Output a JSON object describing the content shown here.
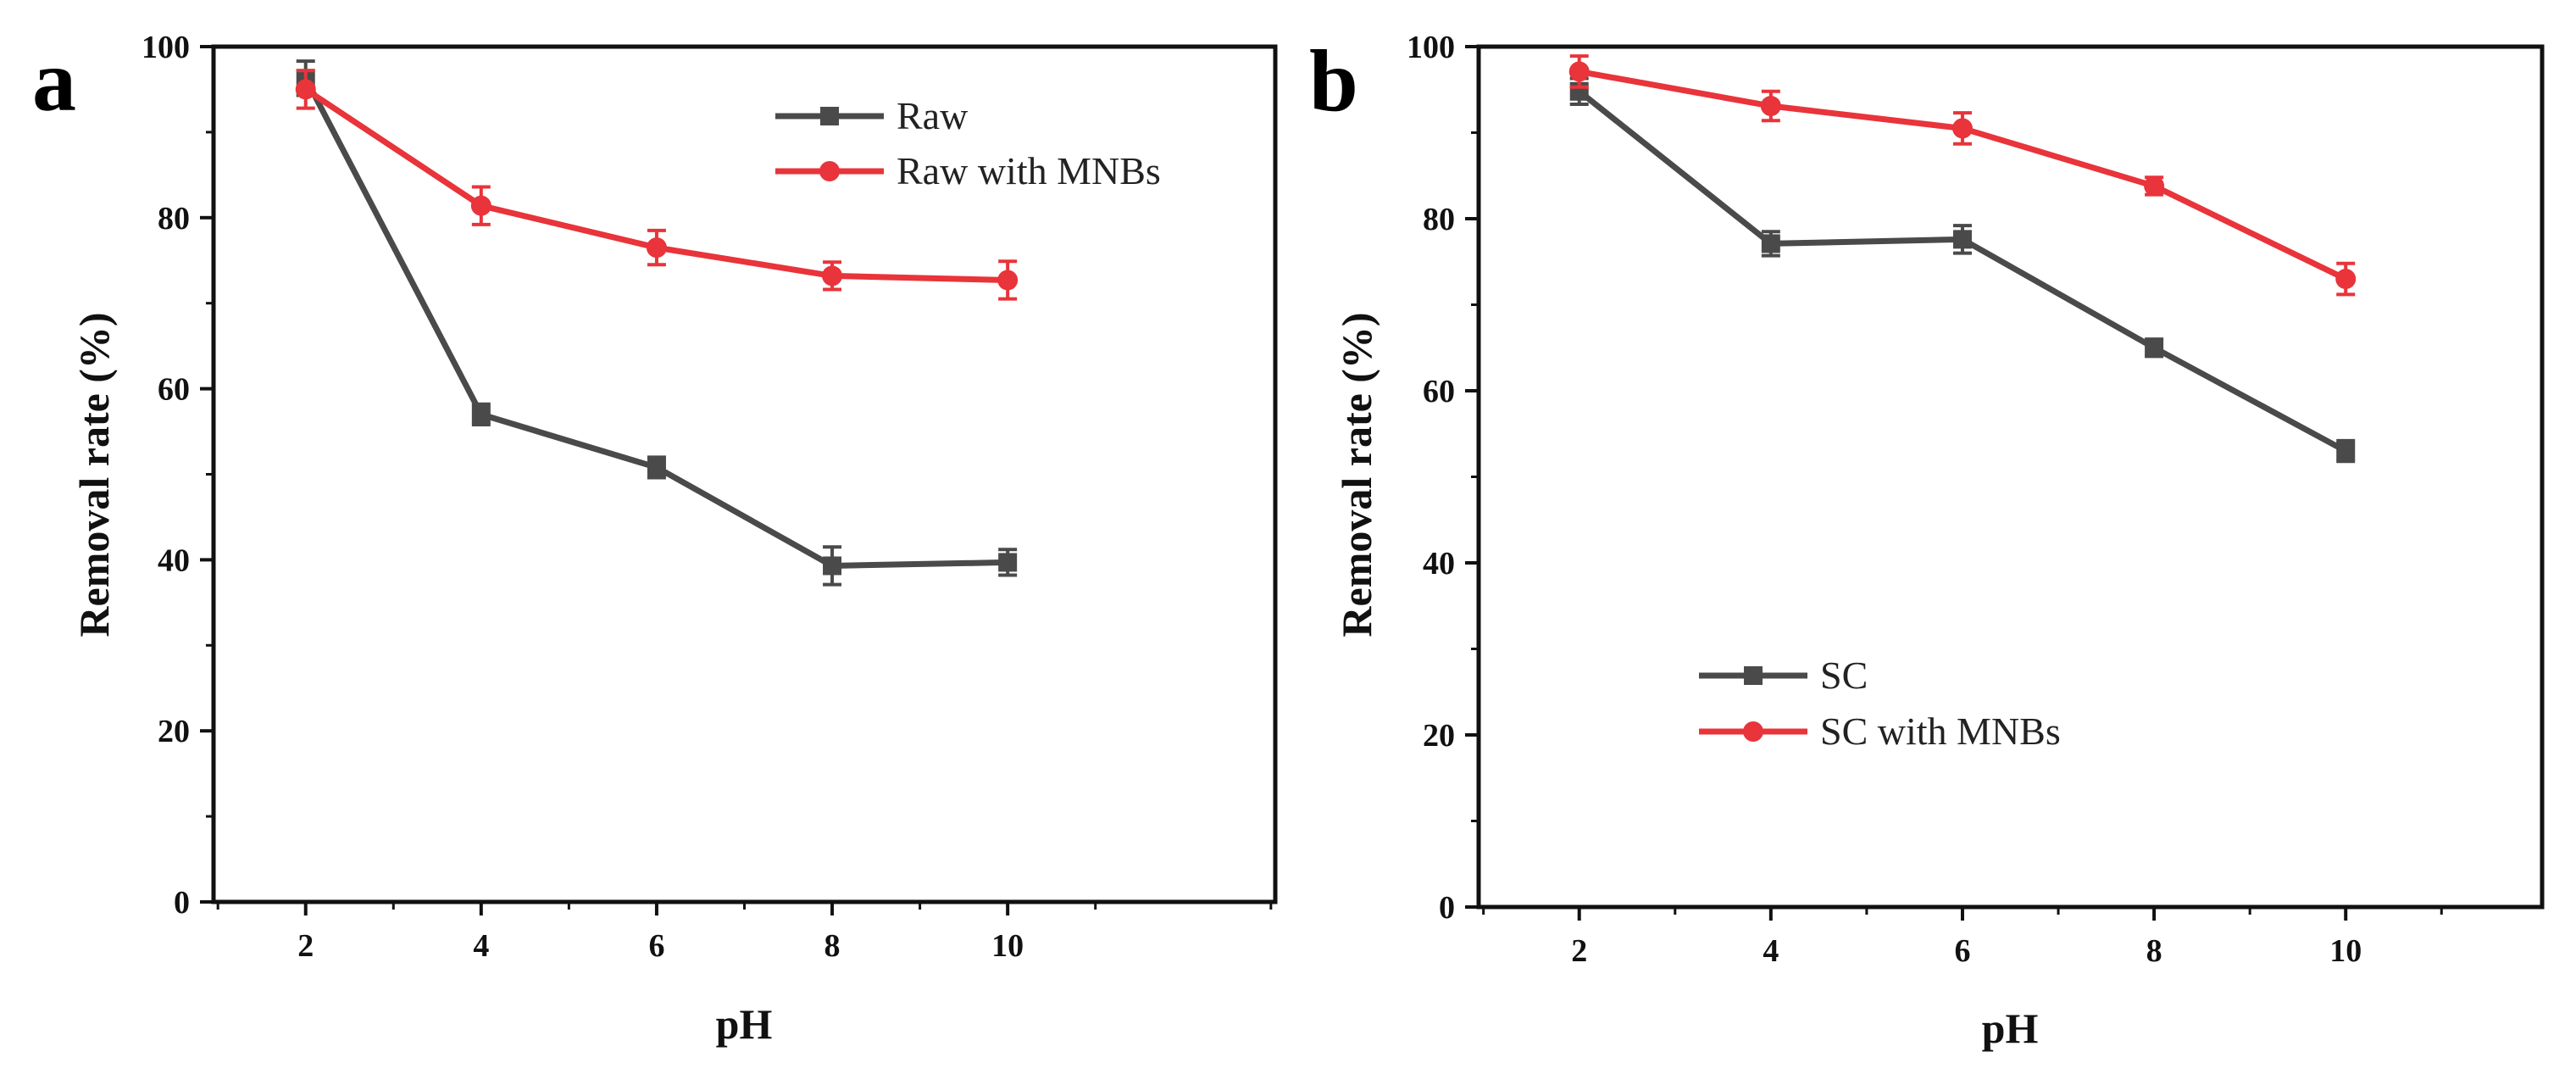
{
  "chart_data": [
    {
      "panel": "a",
      "type": "line",
      "xlabel": "pH",
      "ylabel": "Removal rate (%)",
      "xlim": [
        0.95,
        13.05
      ],
      "ylim": [
        0,
        100
      ],
      "xticks": [
        2,
        4,
        6,
        8,
        10
      ],
      "yticks": [
        0,
        20,
        40,
        60,
        80,
        100
      ],
      "legend_position": "top-right",
      "x": [
        2,
        4,
        6,
        8,
        10
      ],
      "series": [
        {
          "name": "Raw",
          "color": "#4a4a4a",
          "marker": "square",
          "values": [
            96.3,
            57.0,
            50.8,
            39.3,
            39.7
          ],
          "errors": [
            2.0,
            1.2,
            1.2,
            2.2,
            1.5
          ]
        },
        {
          "name": "Raw with MNBs",
          "color": "#e8343a",
          "marker": "circle",
          "values": [
            95.0,
            81.4,
            76.5,
            73.2,
            72.7
          ],
          "errors": [
            2.2,
            2.2,
            2.0,
            1.6,
            2.2
          ]
        }
      ]
    },
    {
      "panel": "b",
      "type": "line",
      "xlabel": "pH",
      "ylabel": "Removal rate (%)",
      "xlim": [
        0.95,
        12.05
      ],
      "ylim": [
        0,
        100
      ],
      "xticks": [
        2,
        4,
        6,
        8,
        10
      ],
      "yticks": [
        0,
        20,
        40,
        60,
        80,
        100
      ],
      "legend_position": "bottom-left",
      "x": [
        2,
        4,
        6,
        8,
        10
      ],
      "series": [
        {
          "name": "SC",
          "color": "#4a4a4a",
          "marker": "square",
          "values": [
            94.8,
            77.1,
            77.6,
            65.0,
            53.0
          ],
          "errors": [
            1.5,
            1.4,
            1.6,
            1.0,
            1.2
          ]
        },
        {
          "name": "SC with MNBs",
          "color": "#e8343a",
          "marker": "circle",
          "values": [
            97.1,
            93.1,
            90.5,
            83.8,
            73.0
          ],
          "errors": [
            1.8,
            1.7,
            1.8,
            1.0,
            1.8
          ]
        }
      ]
    }
  ]
}
